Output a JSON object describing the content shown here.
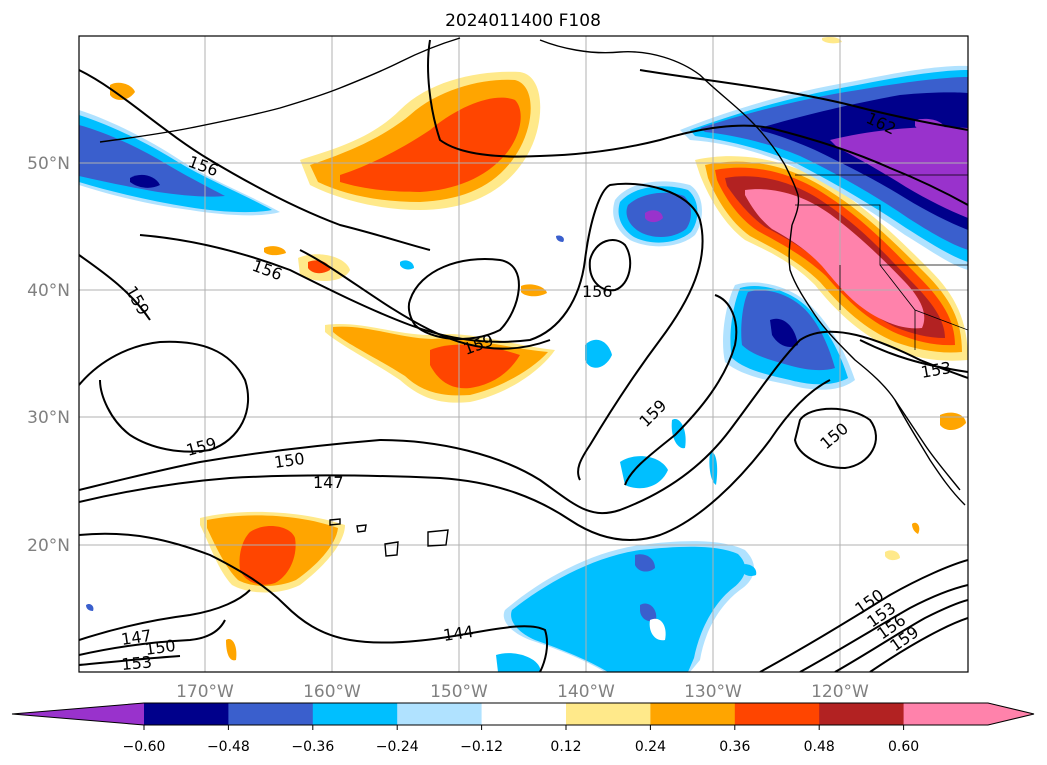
{
  "title": "2024011400 F108",
  "map": {
    "lat_labels": [
      "50°N",
      "40°N",
      "30°N",
      "20°N"
    ],
    "lon_labels": [
      "170°W",
      "160°W",
      "150°W",
      "140°W",
      "130°W",
      "120°W"
    ],
    "contour_labels": [
      "162",
      "156",
      "156",
      "156",
      "159",
      "159",
      "159",
      "159",
      "150",
      "147",
      "147",
      "150",
      "153",
      "144",
      "150",
      "153",
      "153",
      "156",
      "159",
      "150"
    ]
  },
  "colorbar": {
    "ticks": [
      "−0.60",
      "−0.48",
      "−0.36",
      "−0.24",
      "−0.12",
      "0.12",
      "0.24",
      "0.36",
      "0.48",
      "0.60"
    ],
    "colors": [
      "#9932cc",
      "#00008b",
      "#3a5fcd",
      "#00bfff",
      "#b0e2ff",
      "#ffffff",
      "#ffe98a",
      "#ffa500",
      "#ff4500",
      "#b22222",
      "#ff82ab"
    ],
    "extend": "both"
  },
  "colors": {
    "frame": "#000000",
    "grid": "#b0b0b0",
    "axis_text": "#808080"
  }
}
